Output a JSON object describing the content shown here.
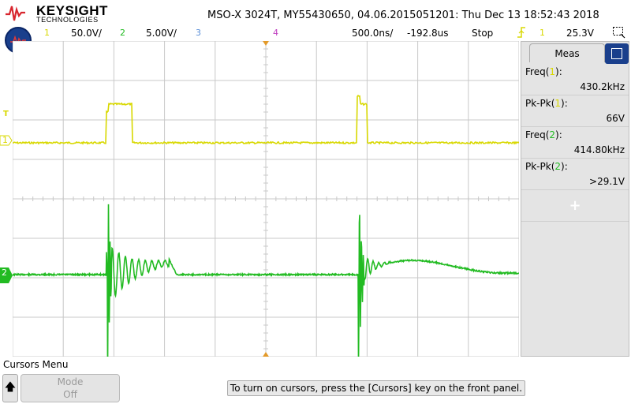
{
  "header": {
    "brand": "KEYSIGHT",
    "brand_sub": "TECHNOLOGIES",
    "title": "MSO-X 3024T,  MY55430650, 04.06.2015051201: Thu Dec 13 18:52:43 2018"
  },
  "status": {
    "ch1_num": "1",
    "ch1_scale": "50.0V/",
    "ch2_num": "2",
    "ch2_scale": "5.00V/",
    "ch3_num": "3",
    "ch4_num": "4",
    "timebase": "500.0ns/",
    "delay": "-192.8us",
    "run_state": "Stop",
    "trig_icon": "trigger-edge-icon",
    "trig_ch": "1",
    "trig_level": "25.3V"
  },
  "colors": {
    "ch1": "#d8d800",
    "ch2": "#22bb22",
    "ch3": "#5a8fd8",
    "ch4": "#c040c0",
    "grid": "#c8c8c8"
  },
  "markers": {
    "ch1_trig": "T",
    "ch1_ground": "1",
    "ch2_ground": "2"
  },
  "panel": {
    "tab_label": "Meas",
    "measurements": [
      {
        "label_pre": "Freq(",
        "ch": "1",
        "label_post": "):",
        "value": "430.2kHz",
        "color": "#d8d800"
      },
      {
        "label_pre": "Pk-Pk(",
        "ch": "1",
        "label_post": "):",
        "value": "66V",
        "color": "#d8d800"
      },
      {
        "label_pre": "Freq(",
        "ch": "2",
        "label_post": "):",
        "value": "414.80kHz",
        "color": "#22bb22"
      },
      {
        "label_pre": "Pk-Pk(",
        "ch": "2",
        "label_post": "):",
        "value": ">29.1V",
        "color": "#22bb22"
      }
    ],
    "add_symbol": "+"
  },
  "bottom": {
    "menu_title": "Cursors Menu",
    "mode_label": "Mode",
    "mode_value": "Off",
    "hint": "To turn on cursors, press the [Cursors] key on the front panel."
  }
}
